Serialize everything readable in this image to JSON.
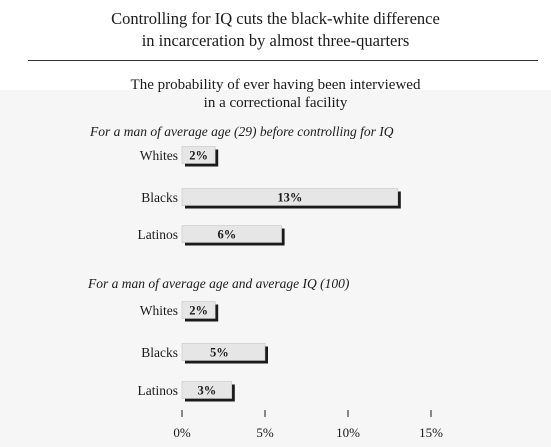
{
  "title_line1": "Controlling for IQ cuts the black-white difference",
  "title_line2": "in incarceration by almost three-quarters",
  "subtitle_line1": "The probability of ever having been interviewed",
  "subtitle_line2": "in a correctional facility",
  "chart_data": {
    "type": "bar",
    "orientation": "horizontal",
    "unit": "%",
    "xlim": [
      0,
      15
    ],
    "x_ticks": [
      0,
      5,
      10,
      15
    ],
    "x_tick_labels": [
      "0%",
      "5%",
      "10%",
      "15%"
    ],
    "panels": [
      {
        "title": "For a man of average age (29) before controlling for IQ",
        "categories": [
          "Whites",
          "Blacks",
          "Latinos"
        ],
        "values": [
          2,
          13,
          6
        ],
        "labels": [
          "2%",
          "13%",
          "6%"
        ]
      },
      {
        "title": "For a man of average age and average IQ (100)",
        "categories": [
          "Whites",
          "Blacks",
          "Latinos"
        ],
        "values": [
          2,
          5,
          3
        ],
        "labels": [
          "2%",
          "5%",
          "3%"
        ]
      }
    ]
  },
  "colors": {
    "bar_face": "#e6e6e6",
    "bar_shadow": "#1a1a1a",
    "band": "#f6f6f6"
  }
}
